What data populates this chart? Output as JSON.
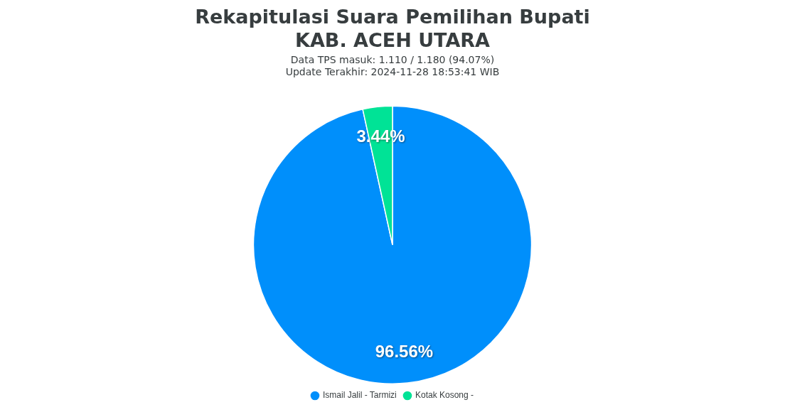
{
  "chart_data": {
    "type": "pie",
    "title": "Rekapitulasi Suara Pemilihan Bupati\nKAB. ACEH UTARA",
    "subtitle": "Data TPS masuk: 1.110 / 1.180 (94.07%)\nUpdate Terakhir: 2024-11-28 18:53:41 WIB",
    "categories": [
      "Ismail Jalil - Tarmizi",
      "Kotak Kosong -"
    ],
    "values": [
      96.56,
      3.44
    ],
    "colors": [
      "#008ffb",
      "#00e396"
    ],
    "value_labels": [
      "96.56%",
      "3.44%"
    ],
    "legend": "bottom"
  }
}
